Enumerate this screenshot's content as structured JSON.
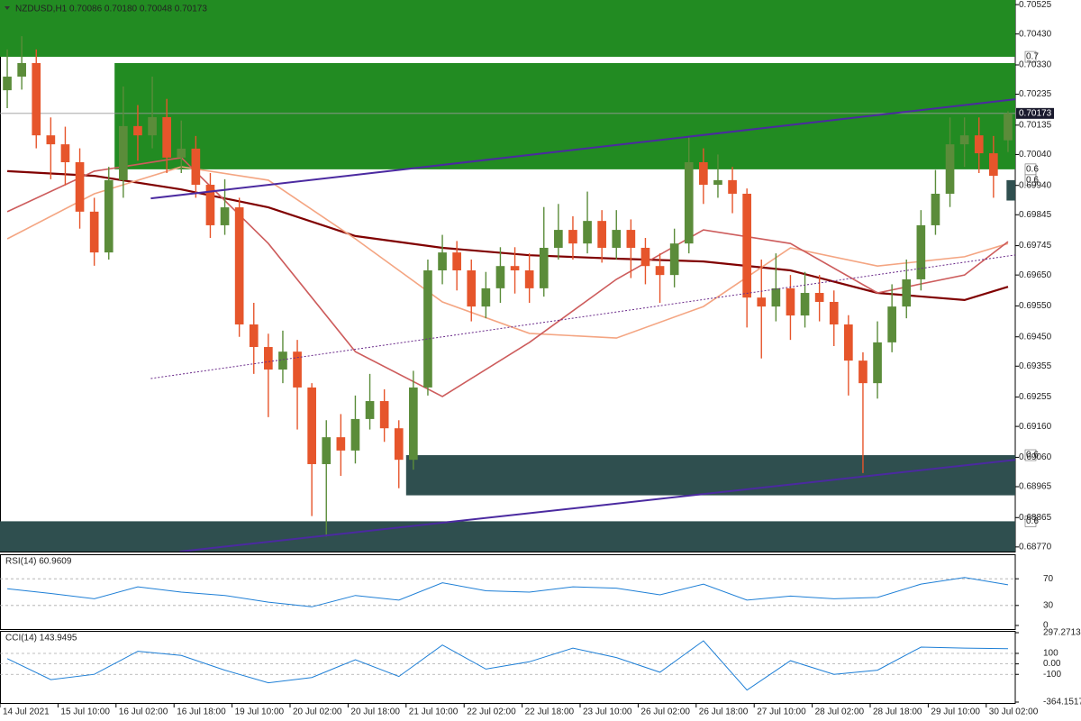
{
  "chart_data": [
    {
      "type": "candlestick",
      "title": "NZDUSD,H1 0.70086 0.70180 0.70048 0.70173",
      "categories": [
        "14 Jul 2021",
        null,
        null,
        null,
        "15 Jul 10:00",
        null,
        null,
        null,
        "16 Jul 02:00",
        null,
        null,
        null,
        "16 Jul 18:00",
        null,
        null,
        null,
        "19 Jul 10:00",
        null,
        null,
        null,
        "20 Jul 02:00",
        null,
        null,
        null,
        "20 Jul 18:00",
        null,
        null,
        null,
        "21 Jul 10:00",
        null,
        null,
        null,
        "22 Jul 02:00",
        null,
        null,
        null,
        "22 Jul 18:00",
        null,
        null,
        null,
        "23 Jul 10:00",
        null,
        null,
        null,
        "26 Jul 02:00",
        null,
        null,
        null,
        "26 Jul 18:00",
        null,
        null,
        null,
        "27 Jul 10:00",
        null,
        null,
        null,
        "28 Jul 02:00",
        null,
        null,
        null,
        "28 Jul 18:00",
        null,
        null,
        null,
        "29 Jul 10:00",
        null,
        null,
        null,
        "30 Jul 02:00",
        null
      ],
      "ohlc": [
        [
          0.70248,
          0.7038,
          0.7019,
          0.70292
        ],
        [
          0.70292,
          0.70423,
          0.7025,
          0.70336
        ],
        [
          0.70336,
          0.7038,
          0.7006,
          0.70102
        ],
        [
          0.70102,
          0.7016,
          0.6996,
          0.70073
        ],
        [
          0.70073,
          0.7013,
          0.6994,
          0.70015
        ],
        [
          0.70015,
          0.7006,
          0.698,
          0.69855
        ],
        [
          0.69855,
          0.699,
          0.6968,
          0.69723
        ],
        [
          0.69723,
          0.7,
          0.697,
          0.69957
        ],
        [
          0.69957,
          0.7026,
          0.699,
          0.70132
        ],
        [
          0.70132,
          0.702,
          0.7002,
          0.70102
        ],
        [
          0.70102,
          0.70292,
          0.7006,
          0.70161
        ],
        [
          0.70161,
          0.7022,
          0.6998,
          0.7003
        ],
        [
          0.7003,
          0.7015,
          0.6998,
          0.70059
        ],
        [
          0.70059,
          0.701,
          0.699,
          0.69942
        ],
        [
          0.69942,
          0.6998,
          0.6977,
          0.69811
        ],
        [
          0.69811,
          0.6996,
          0.6978,
          0.69869
        ],
        [
          0.69869,
          0.699,
          0.6945,
          0.6949
        ],
        [
          0.6949,
          0.6956,
          0.6933,
          0.69417
        ],
        [
          0.69417,
          0.6946,
          0.6919,
          0.69344
        ],
        [
          0.69344,
          0.6947,
          0.693,
          0.69402
        ],
        [
          0.69402,
          0.6944,
          0.6915,
          0.69286
        ],
        [
          0.69286,
          0.693,
          0.6887,
          0.69038
        ],
        [
          0.69038,
          0.6918,
          0.68804,
          0.69125
        ],
        [
          0.69125,
          0.692,
          0.69,
          0.69082
        ],
        [
          0.69082,
          0.6926,
          0.6904,
          0.69184
        ],
        [
          0.69184,
          0.6933,
          0.6915,
          0.69242
        ],
        [
          0.69242,
          0.6928,
          0.6911,
          0.69154
        ],
        [
          0.69154,
          0.6918,
          0.6896,
          0.69052
        ],
        [
          0.69052,
          0.6934,
          0.6902,
          0.69286
        ],
        [
          0.69286,
          0.697,
          0.6926,
          0.69665
        ],
        [
          0.69665,
          0.6978,
          0.6962,
          0.69723
        ],
        [
          0.69723,
          0.6976,
          0.696,
          0.69665
        ],
        [
          0.69665,
          0.697,
          0.695,
          0.69548
        ],
        [
          0.69548,
          0.6966,
          0.6951,
          0.69607
        ],
        [
          0.69607,
          0.6974,
          0.6956,
          0.69679
        ],
        [
          0.69679,
          0.6974,
          0.6959,
          0.69665
        ],
        [
          0.69665,
          0.6972,
          0.6956,
          0.69607
        ],
        [
          0.69607,
          0.6987,
          0.6958,
          0.69738
        ],
        [
          0.69738,
          0.6988,
          0.697,
          0.69796
        ],
        [
          0.69796,
          0.6984,
          0.697,
          0.69752
        ],
        [
          0.69752,
          0.6992,
          0.6972,
          0.69825
        ],
        [
          0.69825,
          0.6986,
          0.6969,
          0.69738
        ],
        [
          0.69738,
          0.6986,
          0.697,
          0.69796
        ],
        [
          0.69796,
          0.6983,
          0.6964,
          0.69738
        ],
        [
          0.69738,
          0.6977,
          0.6962,
          0.69679
        ],
        [
          0.69679,
          0.6972,
          0.6956,
          0.6965
        ],
        [
          0.6965,
          0.698,
          0.6961,
          0.69752
        ],
        [
          0.69752,
          0.701,
          0.6972,
          0.70015
        ],
        [
          0.70015,
          0.7006,
          0.6988,
          0.69942
        ],
        [
          0.69942,
          0.7004,
          0.699,
          0.69957
        ],
        [
          0.69957,
          0.7,
          0.6985,
          0.69913
        ],
        [
          0.69913,
          0.6993,
          0.6948,
          0.69577
        ],
        [
          0.69577,
          0.697,
          0.6938,
          0.69548
        ],
        [
          0.69548,
          0.6972,
          0.695,
          0.69607
        ],
        [
          0.69607,
          0.6965,
          0.6944,
          0.69519
        ],
        [
          0.69519,
          0.6966,
          0.6948,
          0.69592
        ],
        [
          0.69592,
          0.6965,
          0.695,
          0.69563
        ],
        [
          0.69563,
          0.696,
          0.6942,
          0.6949
        ],
        [
          0.6949,
          0.6952,
          0.6926,
          0.69373
        ],
        [
          0.69373,
          0.694,
          0.69009,
          0.693
        ],
        [
          0.693,
          0.695,
          0.6925,
          0.69432
        ],
        [
          0.69432,
          0.6962,
          0.694,
          0.69548
        ],
        [
          0.69548,
          0.697,
          0.6951,
          0.69636
        ],
        [
          0.69636,
          0.6986,
          0.696,
          0.69811
        ],
        [
          0.69811,
          0.6999,
          0.6978,
          0.69913
        ],
        [
          0.69913,
          0.7016,
          0.6987,
          0.70073
        ],
        [
          0.70073,
          0.7016,
          0.7,
          0.70102
        ],
        [
          0.70102,
          0.7016,
          0.6998,
          0.70044
        ],
        [
          0.70044,
          0.701,
          0.699,
          0.69971
        ],
        [
          0.70086,
          0.7018,
          0.70048,
          0.70173
        ]
      ],
      "up_color": "#5b8c3a",
      "down_color": "#e6552b",
      "series": [
        {
          "color": "#800000",
          "x": [
            0,
            6,
            12,
            18,
            24,
            30,
            36,
            42,
            48,
            54,
            60,
            66,
            69
          ],
          "values": [
            0.69986,
            0.69971,
            0.69927,
            0.69869,
            0.69776,
            0.69738,
            0.69714,
            0.69703,
            0.69694,
            0.69665,
            0.69592,
            0.69569,
            0.69612
          ]
        },
        {
          "color": "#f4a582",
          "x": [
            0,
            6,
            12,
            18,
            24,
            30,
            36,
            42,
            48,
            54,
            60,
            66,
            69
          ],
          "values": [
            0.69767,
            0.69913,
            0.7,
            0.69957,
            0.69767,
            0.69563,
            0.69461,
            0.69446,
            0.69548,
            0.69738,
            0.69679,
            0.69709,
            0.69752
          ]
        },
        {
          "color": "#cd5c5c",
          "x": [
            0,
            6,
            12,
            18,
            24,
            30,
            36,
            42,
            48,
            54,
            60,
            66,
            69
          ],
          "values": [
            0.69855,
            0.69986,
            0.7003,
            0.69752,
            0.69402,
            0.69257,
            0.69432,
            0.69636,
            0.69796,
            0.69752,
            0.69592,
            0.6965,
            0.69758
          ]
        }
      ],
      "zones": [
        {
          "from": 0.70356,
          "to": 0.7054,
          "x": [
            0,
            70
          ],
          "color": "#228b22",
          "label": "0.7",
          "label_edge": "bottom"
        },
        {
          "from": 0.69992,
          "to": 0.70336,
          "x": [
            7.9,
            70
          ],
          "color": "#228b22",
          "label": "0.6",
          "label_edge": "bottom"
        },
        {
          "from": 0.69891,
          "to": 0.69957,
          "x": [
            69.4,
            70
          ],
          "color": "#2f4f4f",
          "label": "0.6",
          "label_edge": "top"
        },
        {
          "from": 0.68937,
          "to": 0.69067,
          "x": [
            28,
            70
          ],
          "color": "#2f4f4f",
          "label": "0.6",
          "label_edge": "top"
        },
        {
          "from": 0.68755,
          "to": 0.68853,
          "x": [
            0,
            70
          ],
          "color": "#2f4f4f",
          "label": "0.6",
          "label_edge": "top"
        }
      ],
      "lines": [
        {
          "x": [
            10.4,
            70
          ],
          "values": [
            0.69898,
            0.70219
          ],
          "color": "#4b2aa0",
          "style": "solid"
        },
        {
          "x": [
            12.4,
            70
          ],
          "values": [
            0.68755,
            0.69052
          ],
          "color": "#4b2aa0",
          "style": "solid"
        },
        {
          "x": [
            10.4,
            70
          ],
          "values": [
            0.69315,
            0.69715
          ],
          "color": "#6a2a8a",
          "style": "dotted"
        }
      ],
      "last_price": 0.70173,
      "ylim": [
        0.68755,
        0.7054
      ],
      "yticks": [
        0.70525,
        {
          "value": 0.7043,
          "label": "0.70430"
        },
        {
          "value": 0.7033,
          "label": "0.70330"
        },
        0.70235,
        0.70135,
        {
          "value": 0.7004,
          "label": "0.70040"
        },
        {
          "value": 0.6994,
          "label": "0.69940"
        },
        0.69845,
        0.69745,
        {
          "value": 0.6965,
          "label": "0.69650"
        },
        {
          "value": 0.6955,
          "label": "0.69550"
        },
        {
          "value": 0.6945,
          "label": "0.69450"
        },
        0.69355,
        0.69255,
        {
          "value": 0.6916,
          "label": "0.69160"
        },
        {
          "value": 0.6906,
          "label": "0.69060"
        },
        0.68965,
        0.68865,
        {
          "value": 0.6877,
          "label": "0.68770"
        }
      ]
    },
    {
      "type": "line",
      "title": "RSI(14) 60.9609",
      "series": [
        {
          "color": "#1e7fd6",
          "x": [
            0,
            3,
            6,
            9,
            12,
            15,
            18,
            21,
            24,
            27,
            30,
            33,
            36,
            39,
            42,
            45,
            48,
            51,
            54,
            57,
            60,
            63,
            66,
            69
          ],
          "values": [
            55,
            48,
            40,
            58,
            50,
            45,
            35,
            28,
            45,
            38,
            64,
            52,
            50,
            58,
            56,
            46,
            62,
            38,
            44,
            40,
            42,
            62,
            72,
            60.9609
          ]
        }
      ],
      "ylim": [
        0,
        100
      ],
      "yticks": [
        70,
        30,
        0
      ]
    },
    {
      "type": "line",
      "title": "CCI(14) 143.9495",
      "series": [
        {
          "color": "#1e7fd6",
          "x": [
            0,
            3,
            6,
            9,
            12,
            15,
            18,
            21,
            24,
            27,
            30,
            33,
            36,
            39,
            42,
            45,
            48,
            51,
            54,
            57,
            60,
            63,
            66,
            69
          ],
          "values": [
            50,
            -150,
            -100,
            120,
            80,
            -60,
            -180,
            -130,
            40,
            -120,
            180,
            -50,
            20,
            150,
            60,
            -80,
            220,
            -250,
            30,
            -100,
            -60,
            160,
            150,
            143.9495
          ]
        }
      ],
      "ylim": [
        -364.1517,
        297.2713
      ],
      "yticks": [
        297.2713,
        100,
        {
          "value": 0,
          "label": "0.00"
        },
        -100,
        -364.1517
      ]
    }
  ]
}
